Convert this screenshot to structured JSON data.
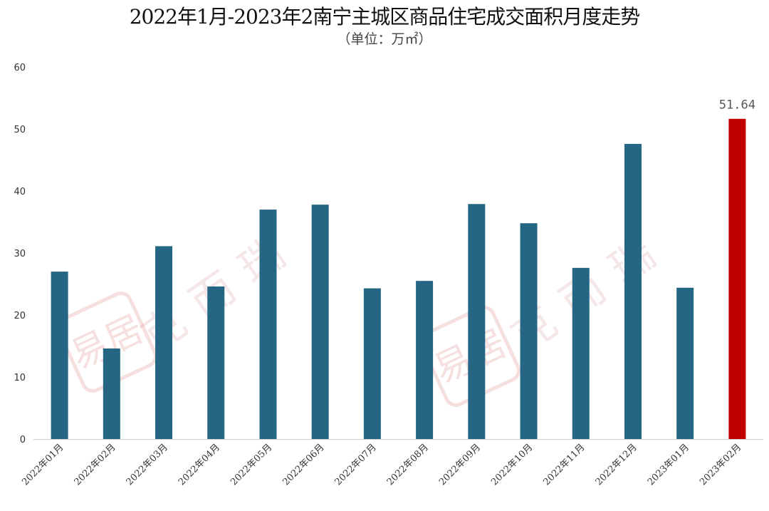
{
  "chart_data": {
    "type": "bar",
    "title": "2022年1月-2023年2南宁主城区商品住宅成交面积月度走势",
    "subtitle": "（单位：万㎡）",
    "categories": [
      "2022年01月",
      "2022年02月",
      "2022年03月",
      "2022年04月",
      "2022年05月",
      "2022年06月",
      "2022年07月",
      "2022年08月",
      "2022年09月",
      "2022年10月",
      "2022年11月",
      "2022年12月",
      "2023年01月",
      "2023年02月"
    ],
    "values": [
      27.0,
      14.6,
      31.1,
      24.6,
      37.0,
      37.8,
      24.3,
      25.5,
      37.9,
      34.8,
      27.6,
      47.6,
      24.4,
      51.64
    ],
    "data_labels": [
      {
        "index": 13,
        "text": "51.64"
      }
    ],
    "ylim": [
      0,
      60
    ],
    "yticks": [
      0,
      10,
      20,
      30,
      40,
      50,
      60
    ],
    "grid": false,
    "colors": {
      "default": "#246684",
      "highlight": "#c00000"
    },
    "highlight_index": 13
  },
  "watermark": {
    "text": "克而瑞",
    "logo_text": "易居"
  }
}
